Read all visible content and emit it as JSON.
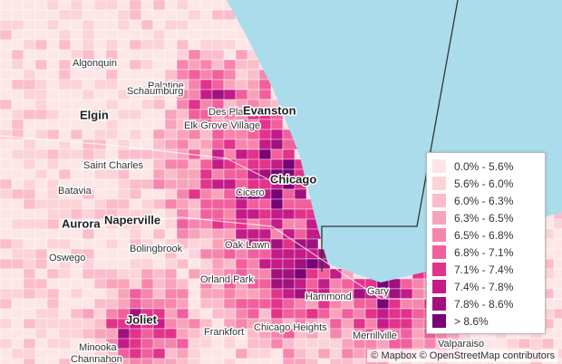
{
  "places": [
    "Algonquin",
    "Palatine",
    "Elgin",
    "Schaumburg",
    "Des Plaines",
    "Evanston",
    "Elk Grove Village",
    "Saint Charles",
    "Chicago",
    "Cicero",
    "Batavia",
    "Aurora",
    "Naperville",
    "Bolingbrook",
    "Oswego",
    "Oak Lawn",
    "Orland Park",
    "Hammond",
    "Gary",
    "Joliet",
    "Frankfort",
    "Chicago Heights",
    "Merrillville",
    "Minooka",
    "Channahon",
    "Valparaiso"
  ],
  "legend": [
    {
      "label": "0.0% - 5.6%",
      "color": "#fde6e6"
    },
    {
      "label": "5.6% - 6.0%",
      "color": "#fcd3d8"
    },
    {
      "label": "6.0% - 6.3%",
      "color": "#fbbdcb"
    },
    {
      "label": "6.3% - 6.5%",
      "color": "#f9a3bb"
    },
    {
      "label": "6.5% - 6.8%",
      "color": "#f685ad"
    },
    {
      "label": "6.8% - 7.1%",
      "color": "#f1609d"
    },
    {
      "label": "7.1% - 7.4%",
      "color": "#e2338b"
    },
    {
      "label": "7.4% - 7.8%",
      "color": "#c41b88"
    },
    {
      "label": "7.8% - 8.6%",
      "color": "#a0117e"
    },
    {
      "label": "> 8.6%",
      "color": "#780276"
    }
  ],
  "attribution": "© Mapbox © OpenStreetMap contributors"
}
